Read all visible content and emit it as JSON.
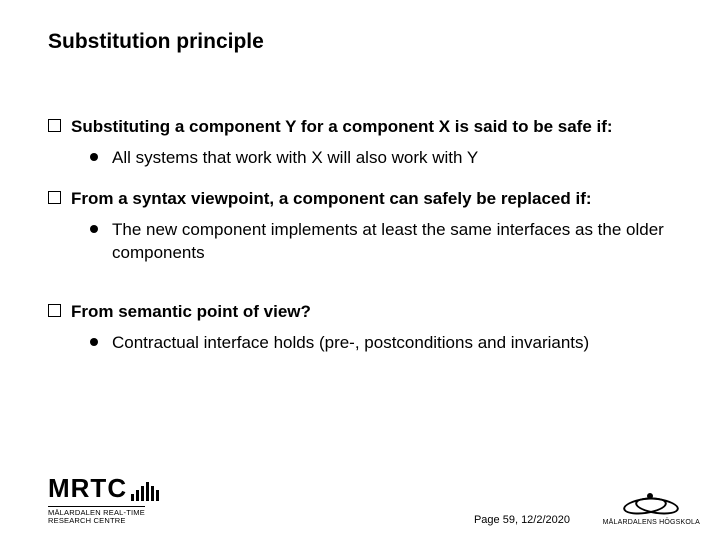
{
  "title": "Substitution principle",
  "items": [
    {
      "level": 0,
      "bold": true,
      "text": "Substituting a component Y for a component X is said to be safe if:"
    },
    {
      "level": 1,
      "bold": false,
      "text": "All systems that work with X will also work with Y"
    },
    {
      "level": 0,
      "bold": true,
      "text": "From a syntax viewpoint, a component can safely be replaced if:"
    },
    {
      "level": 1,
      "bold": false,
      "text": "The new component implements at least the same interfaces as the older components"
    },
    {
      "level": 0,
      "bold": true,
      "text": "From semantic point of view?",
      "gapBefore": true
    },
    {
      "level": 1,
      "bold": false,
      "text": "Contractual interface holds (pre-, postconditions and invariants)"
    }
  ],
  "footer": {
    "logo_left_main": "MRTC",
    "logo_left_sub1": "MÄLARDALEN REAL-TIME",
    "logo_left_sub2": "RESEARCH CENTRE",
    "page_label": "Page 59, 12/2/2020",
    "logo_right_sub": "MÄLARDALENS HÖGSKOLA"
  },
  "colors": {
    "bg": "#ffffff",
    "text": "#000000"
  }
}
